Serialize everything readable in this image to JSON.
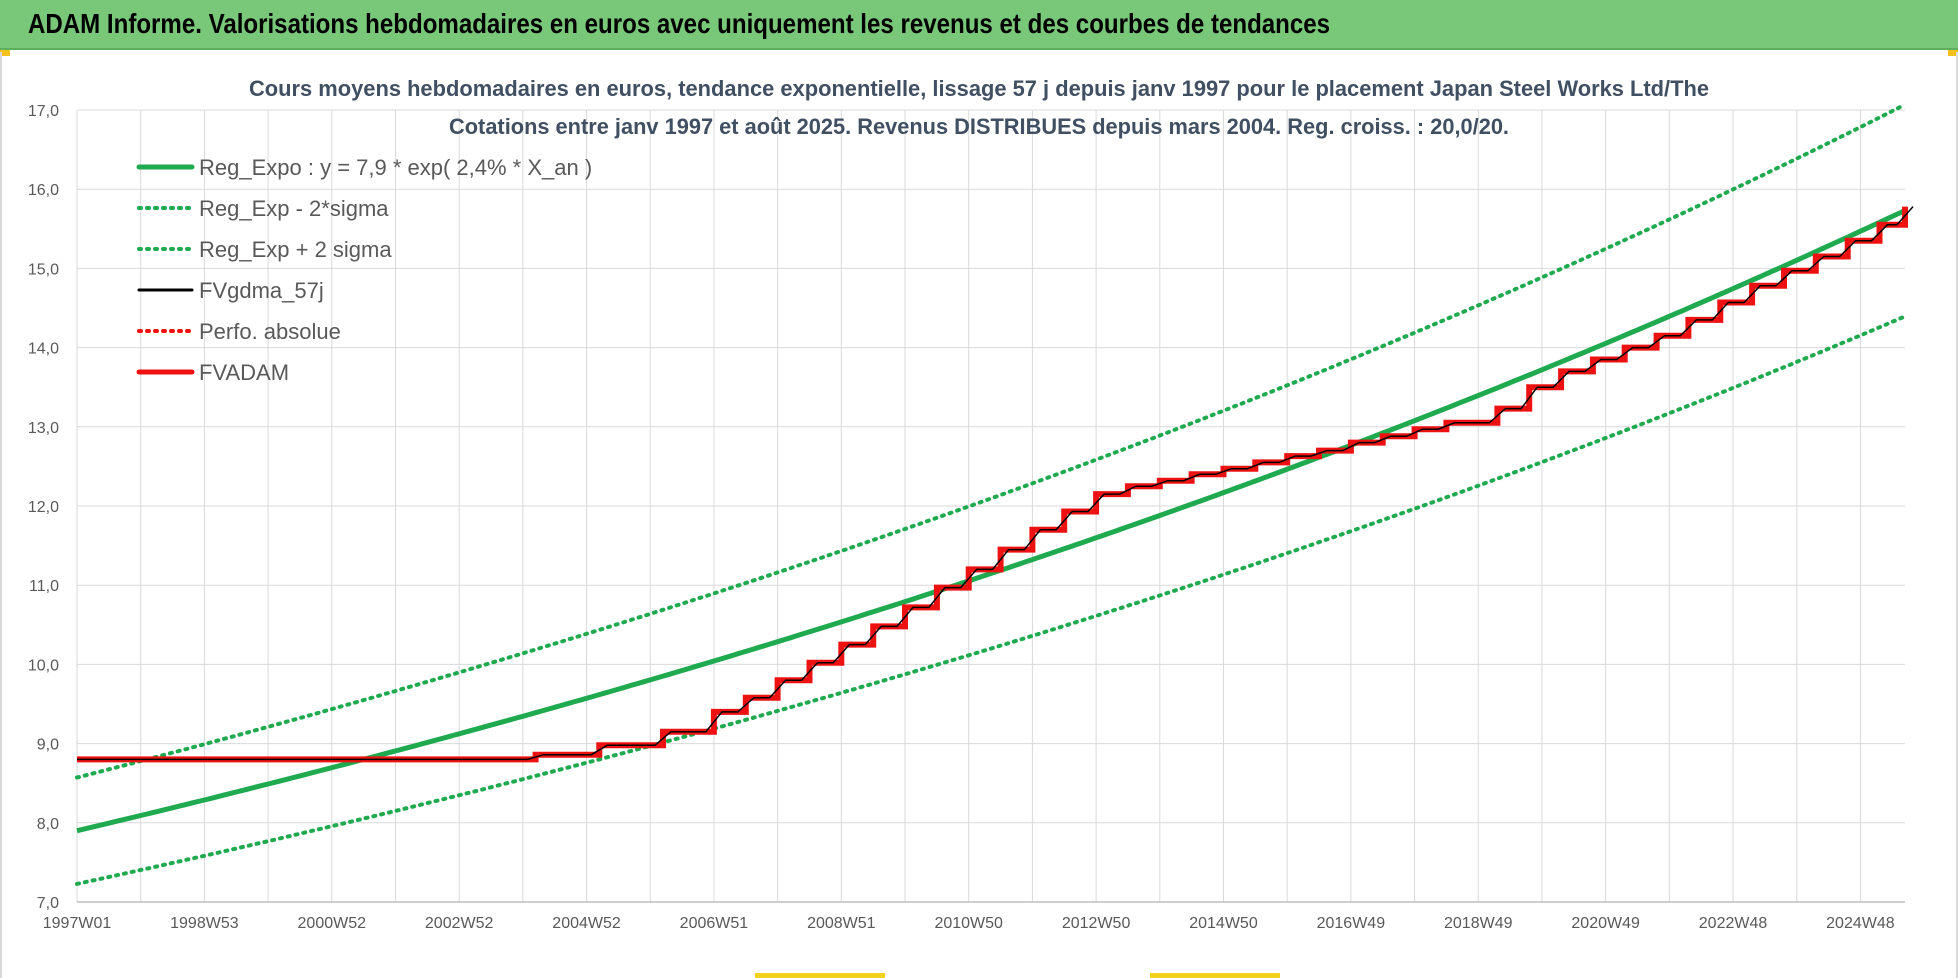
{
  "header": {
    "title": "ADAM Informe. Valorisations hebdomadaires en euros avec uniquement les revenus et des courbes de tendances"
  },
  "colors": {
    "header_bg": "#79c778",
    "trend_green": "#1faa4f",
    "adam_red": "#ee1111",
    "gdma_black": "#000000",
    "grid": "#d9d9d9"
  },
  "chart_data": {
    "type": "line",
    "title": "Cours moyens hebdomadaires en euros, tendance exponentielle, lissage 57 j depuis janv 1997 pour le placement Japan Steel Works Ltd/The",
    "subtitle": "Cotations entre janv 1997 et août 2025. Revenus DISTRIBUES depuis mars 2004. Reg. croiss. : 20,0/20.",
    "xlabel": "",
    "ylabel": "",
    "ylim": [
      7.0,
      17.0
    ],
    "xlim": [
      1997.0,
      2025.7
    ],
    "y_ticks": [
      "7,0",
      "8,0",
      "9,0",
      "10,0",
      "11,0",
      "12,0",
      "13,0",
      "14,0",
      "15,0",
      "16,0",
      "17,0"
    ],
    "x_ticks": [
      {
        "label": "1997W01",
        "x": 1997.0
      },
      {
        "label": "1998W53",
        "x": 1999.0
      },
      {
        "label": "2000W52",
        "x": 2001.0
      },
      {
        "label": "2002W52",
        "x": 2003.0
      },
      {
        "label": "2004W52",
        "x": 2005.0
      },
      {
        "label": "2006W51",
        "x": 2007.0
      },
      {
        "label": "2008W51",
        "x": 2009.0
      },
      {
        "label": "2010W50",
        "x": 2011.0
      },
      {
        "label": "2012W50",
        "x": 2013.0
      },
      {
        "label": "2014W50",
        "x": 2015.0
      },
      {
        "label": "2016W49",
        "x": 2017.0
      },
      {
        "label": "2018W49",
        "x": 2019.0
      },
      {
        "label": "2020W49",
        "x": 2021.0
      },
      {
        "label": "2022W48",
        "x": 2023.0
      },
      {
        "label": "2024W48",
        "x": 2025.0
      }
    ],
    "grid": true,
    "legend_position": "top-left",
    "regression": {
      "a": 7.9,
      "rate": 0.024,
      "sigma_low_factor": 0.915,
      "sigma_high_factor": 1.085
    },
    "series": [
      {
        "name": "Reg_Expo : y = 7,9 * exp( 2,4% *  X_an )",
        "style": "solid-thick",
        "color": "#1faa4f",
        "x": [
          1997.0,
          2001.0,
          2005.0,
          2009.0,
          2013.0,
          2017.0,
          2021.0,
          2025.7
        ],
        "y": [
          7.9,
          8.69,
          9.56,
          10.52,
          11.57,
          12.73,
          14.0,
          15.58
        ]
      },
      {
        "name": "Reg_Exp - 2*sigma",
        "style": "dotted",
        "color": "#1faa4f",
        "x": [
          1997.0,
          2001.0,
          2005.0,
          2009.0,
          2013.0,
          2017.0,
          2021.0,
          2025.7
        ],
        "y": [
          7.23,
          7.95,
          8.75,
          9.63,
          10.59,
          11.65,
          12.81,
          14.26
        ]
      },
      {
        "name": "Reg_Exp + 2 sigma",
        "style": "dotted",
        "color": "#1faa4f",
        "x": [
          1997.0,
          2001.0,
          2005.0,
          2009.0,
          2013.0,
          2017.0,
          2021.0,
          2025.7
        ],
        "y": [
          8.57,
          9.43,
          10.37,
          11.41,
          12.55,
          13.81,
          15.19,
          16.9
        ]
      },
      {
        "name": "FVgdma_57j",
        "style": "solid-thin",
        "color": "#000000"
      },
      {
        "name": "Perfo. absolue",
        "style": "dotted",
        "color": "#ee1111"
      },
      {
        "name": "FVADAM",
        "style": "step-thick",
        "color": "#ee1111",
        "steps": [
          {
            "x": 1997.0,
            "y": 8.8
          },
          {
            "x": 2004.2,
            "y": 8.86
          },
          {
            "x": 2005.2,
            "y": 8.98
          },
          {
            "x": 2006.2,
            "y": 9.15
          },
          {
            "x": 2007.0,
            "y": 9.4
          },
          {
            "x": 2007.5,
            "y": 9.58
          },
          {
            "x": 2008.0,
            "y": 9.8
          },
          {
            "x": 2008.5,
            "y": 10.02
          },
          {
            "x": 2009.0,
            "y": 10.25
          },
          {
            "x": 2009.5,
            "y": 10.48
          },
          {
            "x": 2010.0,
            "y": 10.72
          },
          {
            "x": 2010.5,
            "y": 10.97
          },
          {
            "x": 2011.0,
            "y": 11.2
          },
          {
            "x": 2011.5,
            "y": 11.45
          },
          {
            "x": 2012.0,
            "y": 11.7
          },
          {
            "x": 2012.5,
            "y": 11.93
          },
          {
            "x": 2013.0,
            "y": 12.15
          },
          {
            "x": 2013.5,
            "y": 12.25
          },
          {
            "x": 2014.0,
            "y": 12.32
          },
          {
            "x": 2014.5,
            "y": 12.4
          },
          {
            "x": 2015.0,
            "y": 12.47
          },
          {
            "x": 2015.5,
            "y": 12.55
          },
          {
            "x": 2016.0,
            "y": 12.63
          },
          {
            "x": 2016.5,
            "y": 12.7
          },
          {
            "x": 2017.0,
            "y": 12.8
          },
          {
            "x": 2017.5,
            "y": 12.88
          },
          {
            "x": 2018.0,
            "y": 12.97
          },
          {
            "x": 2018.5,
            "y": 13.05
          },
          {
            "x": 2019.3,
            "y": 13.23
          },
          {
            "x": 2019.8,
            "y": 13.5
          },
          {
            "x": 2020.3,
            "y": 13.7
          },
          {
            "x": 2020.8,
            "y": 13.85
          },
          {
            "x": 2021.3,
            "y": 14.0
          },
          {
            "x": 2021.8,
            "y": 14.15
          },
          {
            "x": 2022.3,
            "y": 14.35
          },
          {
            "x": 2022.8,
            "y": 14.57
          },
          {
            "x": 2023.3,
            "y": 14.78
          },
          {
            "x": 2023.8,
            "y": 14.97
          },
          {
            "x": 2024.3,
            "y": 15.15
          },
          {
            "x": 2024.8,
            "y": 15.35
          },
          {
            "x": 2025.3,
            "y": 15.55
          },
          {
            "x": 2025.7,
            "y": 15.78
          }
        ]
      }
    ]
  }
}
